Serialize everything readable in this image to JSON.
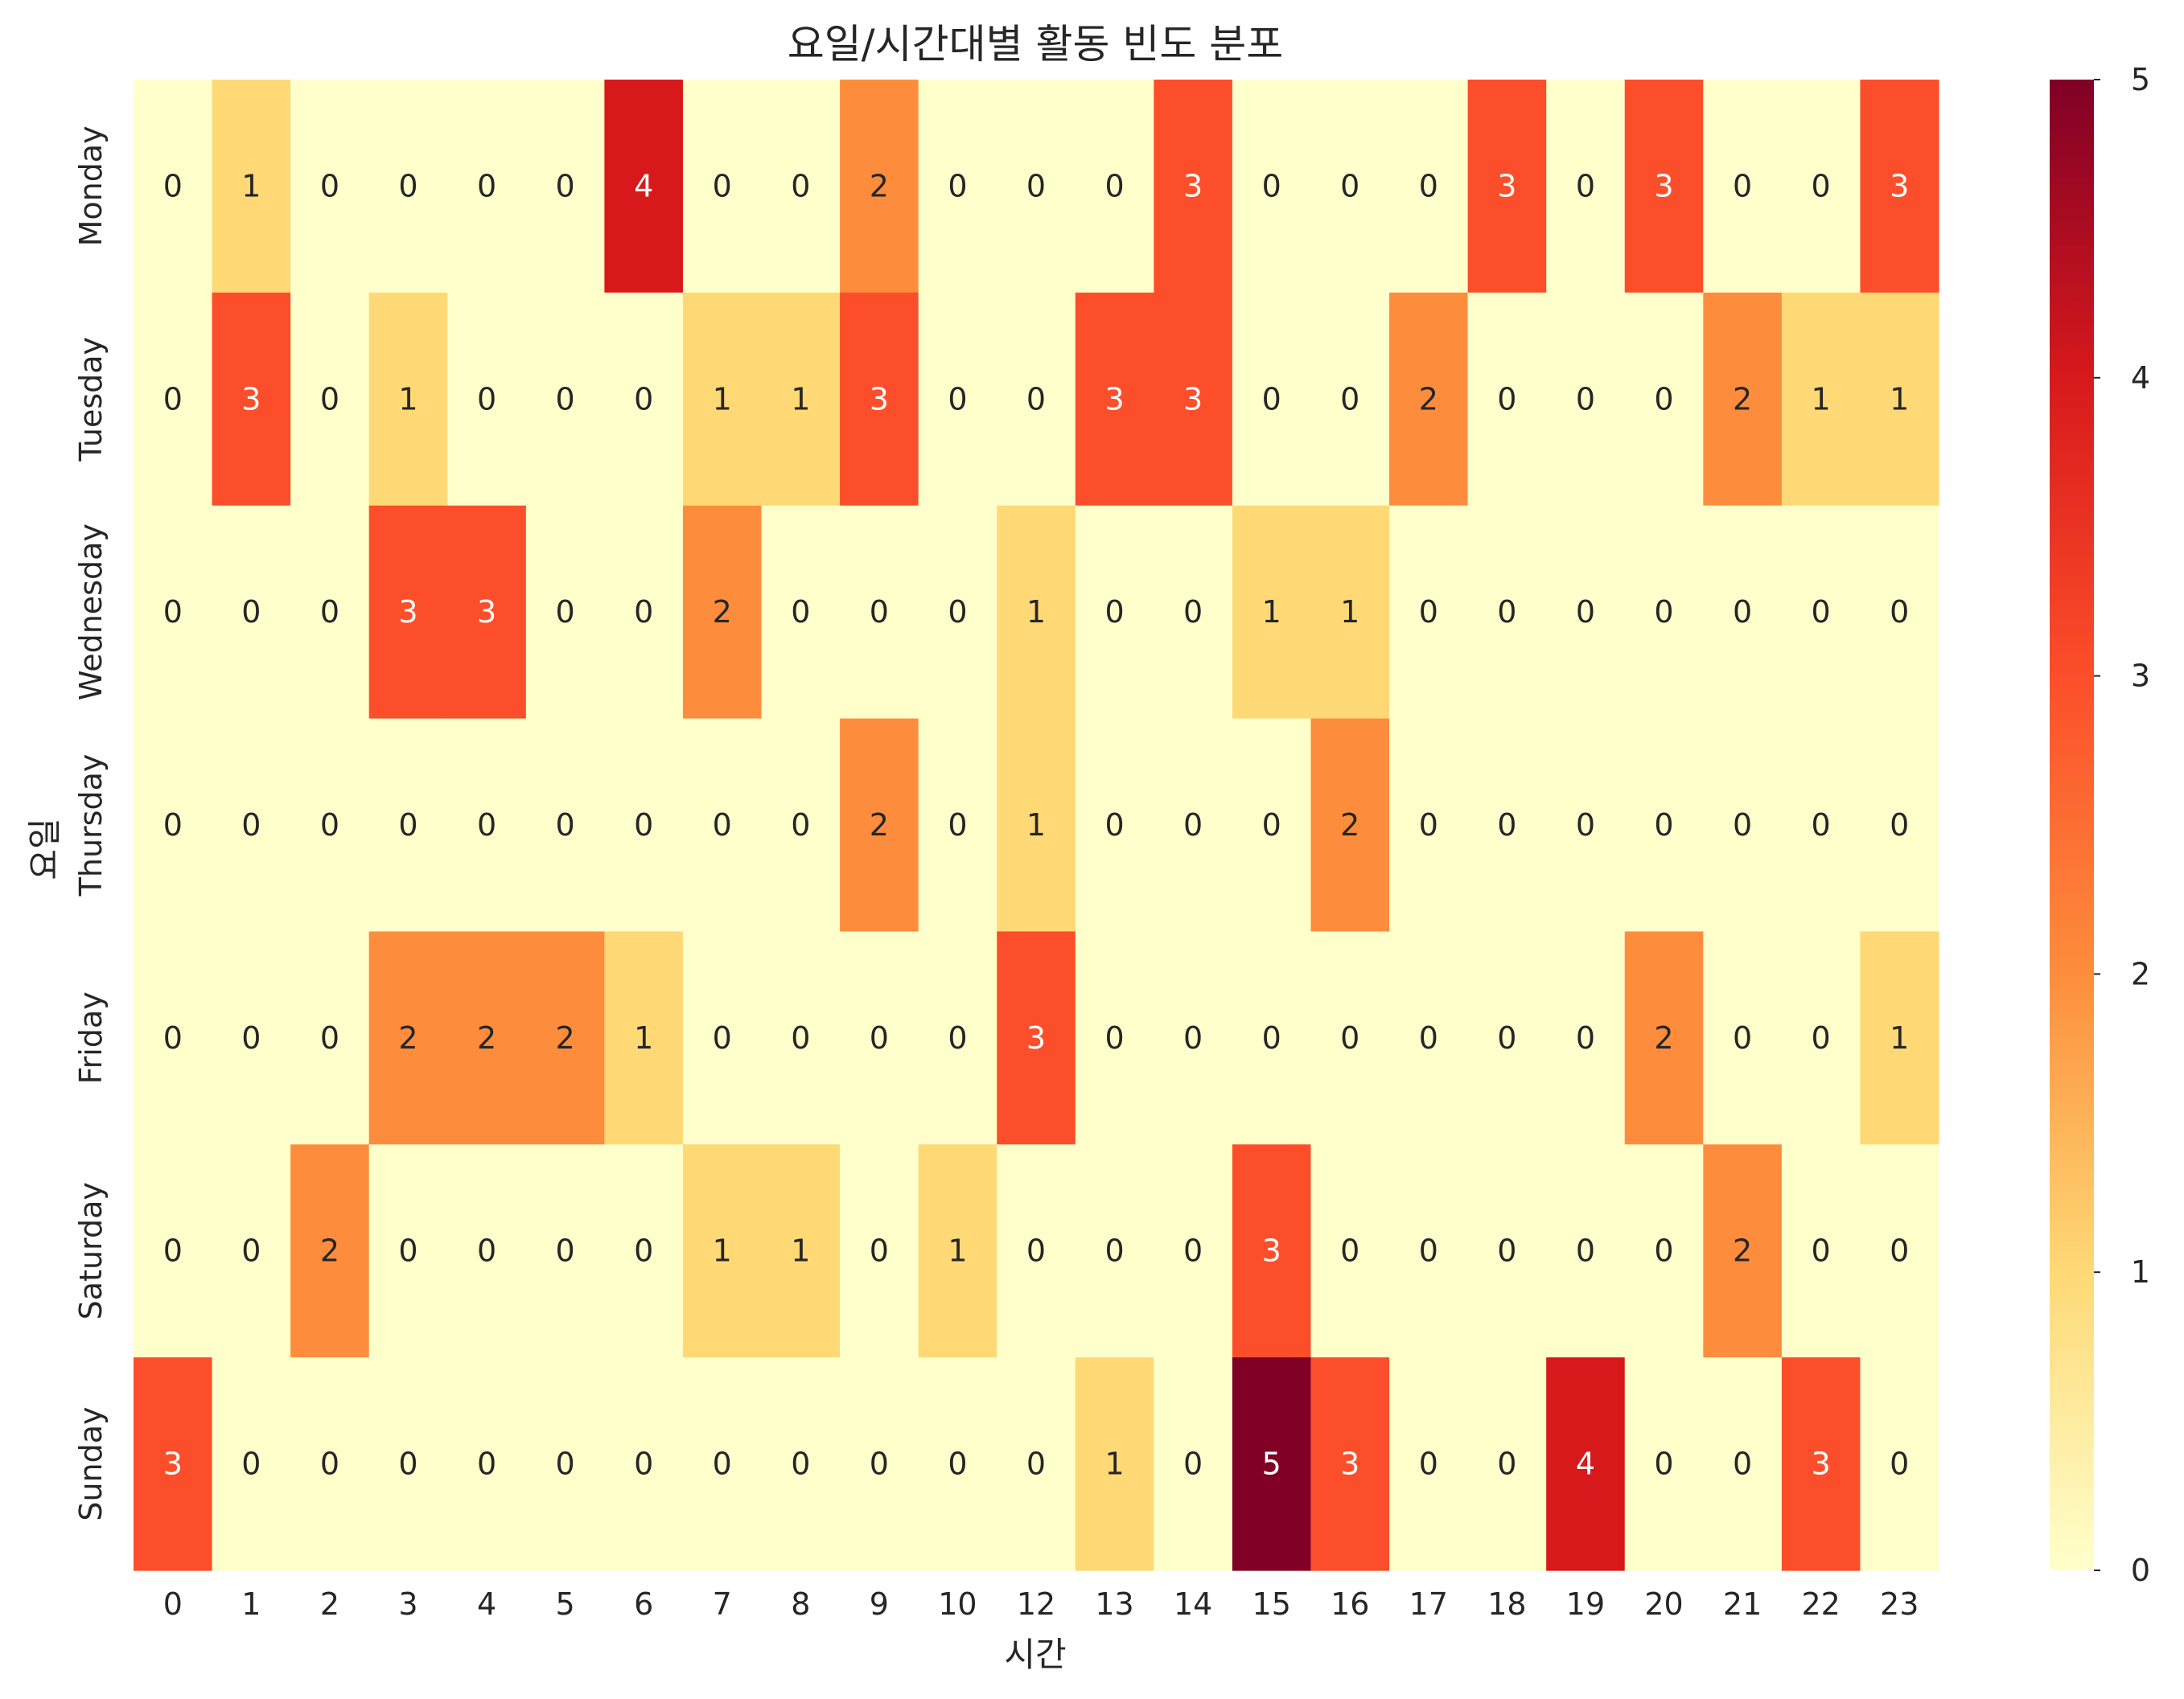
{
  "chart_data": {
    "type": "heatmap",
    "title": "요일/시간대별 활동 빈도 분포",
    "xlabel": "시간",
    "ylabel": "요일",
    "x_categories": [
      "0",
      "1",
      "2",
      "3",
      "4",
      "5",
      "6",
      "7",
      "8",
      "9",
      "10",
      "12",
      "13",
      "14",
      "15",
      "16",
      "17",
      "18",
      "19",
      "20",
      "21",
      "22",
      "23"
    ],
    "y_categories": [
      "Monday",
      "Tuesday",
      "Wednesday",
      "Thursday",
      "Friday",
      "Saturday",
      "Sunday"
    ],
    "values": [
      [
        0,
        1,
        0,
        0,
        0,
        0,
        4,
        0,
        0,
        2,
        0,
        0,
        0,
        3,
        0,
        0,
        0,
        3,
        0,
        3,
        0,
        0,
        3
      ],
      [
        0,
        3,
        0,
        1,
        0,
        0,
        0,
        1,
        1,
        3,
        0,
        0,
        3,
        3,
        0,
        0,
        2,
        0,
        0,
        0,
        2,
        1,
        1
      ],
      [
        0,
        0,
        0,
        3,
        3,
        0,
        0,
        2,
        0,
        0,
        0,
        1,
        0,
        0,
        1,
        1,
        0,
        0,
        0,
        0,
        0,
        0,
        0
      ],
      [
        0,
        0,
        0,
        0,
        0,
        0,
        0,
        0,
        0,
        2,
        0,
        1,
        0,
        0,
        0,
        2,
        0,
        0,
        0,
        0,
        0,
        0,
        0
      ],
      [
        0,
        0,
        0,
        2,
        2,
        2,
        1,
        0,
        0,
        0,
        0,
        3,
        0,
        0,
        0,
        0,
        0,
        0,
        0,
        2,
        0,
        0,
        1
      ],
      [
        0,
        0,
        2,
        0,
        0,
        0,
        0,
        1,
        1,
        0,
        1,
        0,
        0,
        0,
        3,
        0,
        0,
        0,
        0,
        0,
        2,
        0,
        0
      ],
      [
        3,
        0,
        0,
        0,
        0,
        0,
        0,
        0,
        0,
        0,
        0,
        0,
        1,
        0,
        5,
        3,
        0,
        0,
        4,
        0,
        0,
        3,
        0
      ]
    ],
    "colorbar": {
      "min": 0,
      "max": 5,
      "ticks": [
        "0",
        "1",
        "2",
        "3",
        "4",
        "5"
      ]
    },
    "colormap": [
      "#ffffcc",
      "#fed976",
      "#fd8d3c",
      "#fc4e2a",
      "#d7191c",
      "#800026"
    ],
    "annotations": true,
    "grid": false
  }
}
